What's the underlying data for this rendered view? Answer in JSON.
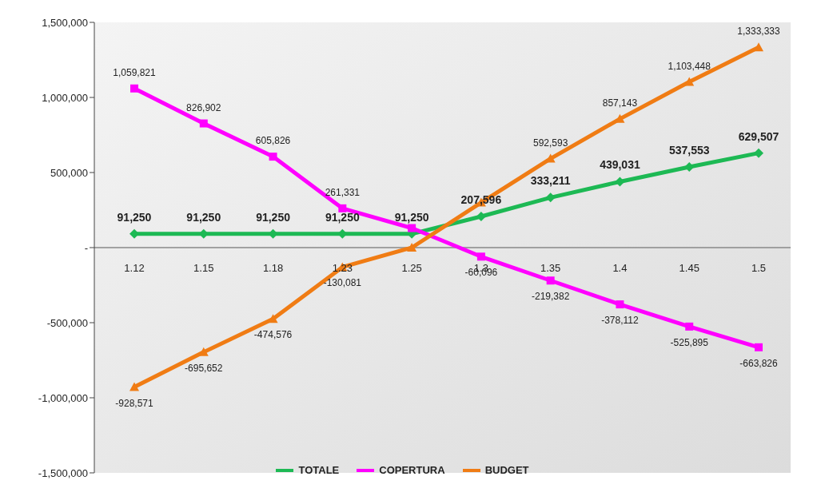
{
  "chart_data": {
    "type": "line",
    "categories": [
      "1.12",
      "1.15",
      "1.18",
      "1.23",
      "1.25",
      "1.3",
      "1.35",
      "1.4",
      "1.45",
      "1.5"
    ],
    "series": [
      {
        "name": "TOTALE",
        "color": "#1db954",
        "marker": "diamond",
        "values": [
          91250,
          91250,
          91250,
          91250,
          91250,
          207596,
          333211,
          439031,
          537553,
          629507
        ],
        "value_labels": [
          "91,250",
          "91,250",
          "91,250",
          "91,250",
          "91,250",
          "207,596",
          "333,211",
          "439,031",
          "537,553",
          "629,507"
        ]
      },
      {
        "name": "COPERTURA",
        "color": "#ff00ff",
        "marker": "square",
        "values": [
          1059821,
          826902,
          605826,
          261331,
          130000,
          -60096,
          -219382,
          -378112,
          -525895,
          -663826
        ],
        "value_labels": [
          "1,059,821",
          "826,902",
          "605,826",
          "261,331",
          null,
          "-60,096",
          "-219,382",
          "-378,112",
          "-525,895",
          "-663,826"
        ]
      },
      {
        "name": "BUDGET",
        "color": "#f07c14",
        "marker": "triangle",
        "values": [
          -928571,
          -695652,
          -474576,
          -130081,
          0,
          300000,
          592593,
          857143,
          1103448,
          1333333
        ],
        "value_labels": [
          "-928,571",
          "-695,652",
          "-474,576",
          "-130,081",
          null,
          null,
          "592,593",
          "857,143",
          "1,103,448",
          "1,333,333"
        ]
      }
    ],
    "ylim": [
      -1500000,
      1500000
    ],
    "yticks": [
      {
        "value": -1500000,
        "label": "-1,500,000"
      },
      {
        "value": -1000000,
        "label": "-1,000,000"
      },
      {
        "value": -500000,
        "label": "-500,000"
      },
      {
        "value": 0,
        "label": "-"
      },
      {
        "value": 500000,
        "label": "500,000"
      },
      {
        "value": 1000000,
        "label": "1,000,000"
      },
      {
        "value": 1500000,
        "label": "1,500,000"
      }
    ],
    "legend": "bottom",
    "grid": false,
    "line_style": "solid"
  }
}
